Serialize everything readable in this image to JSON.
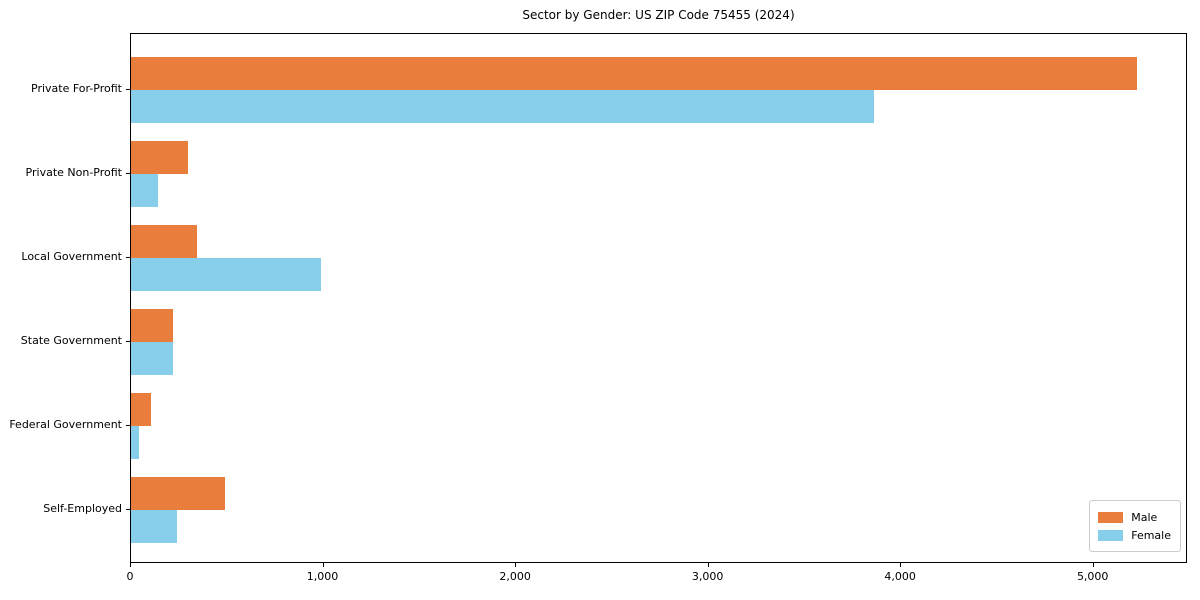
{
  "title": "Sector by Gender: US ZIP Code 75455 (2024)",
  "colors": {
    "male": "#e87d3c",
    "female": "#87ceeb",
    "spine": "#000000",
    "legend_border": "#cccccc",
    "background": "#ffffff"
  },
  "legend": {
    "position": "lower right",
    "items": [
      {
        "label": "Male",
        "color": "#e87d3c"
      },
      {
        "label": "Female",
        "color": "#87ceeb"
      }
    ]
  },
  "chart_data": {
    "type": "bar",
    "orientation": "horizontal",
    "title": "Sector by Gender: US ZIP Code 75455 (2024)",
    "xlabel": "",
    "ylabel": "",
    "categories": [
      "Private For-Profit",
      "Private Non-Profit",
      "Local Government",
      "State Government",
      "Federal Government",
      "Self-Employed"
    ],
    "series": [
      {
        "name": "Male",
        "color": "#e87d3c",
        "values": [
          5225,
          298,
          345,
          218,
          105,
          486
        ]
      },
      {
        "name": "Female",
        "color": "#87ceeb",
        "values": [
          3861,
          142,
          986,
          218,
          43,
          237
        ]
      }
    ],
    "xlim": [
      0,
      5490
    ],
    "xticks": [
      0,
      1000,
      2000,
      3000,
      4000,
      5000
    ],
    "xtick_labels": [
      "0",
      "1,000",
      "2,000",
      "3,000",
      "4,000",
      "5,000"
    ],
    "grid": false,
    "legend_position": "lower right"
  }
}
